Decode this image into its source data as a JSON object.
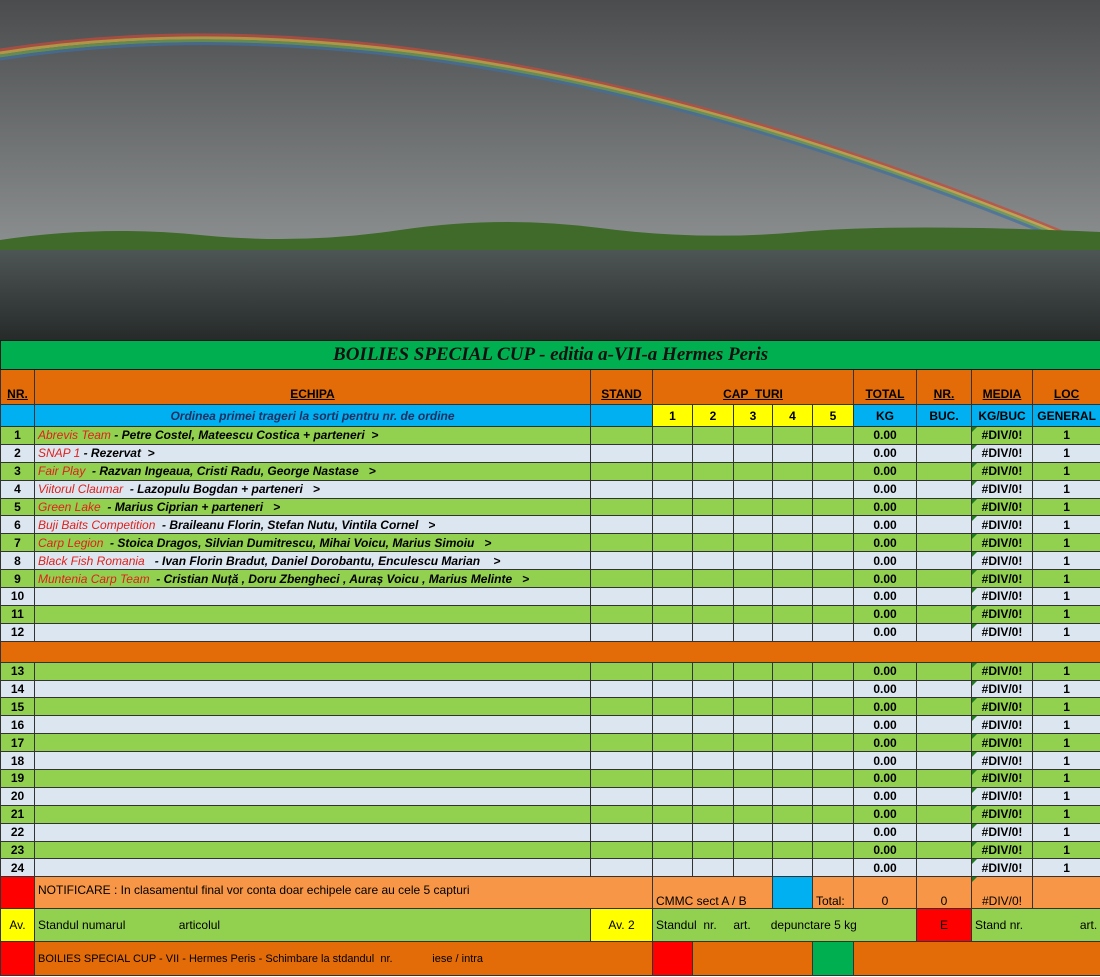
{
  "title": "BOILIES SPECIAL CUP - editia a-VII-a Hermes Peris",
  "headers": {
    "nr": "NR.",
    "echipa": "ECHIPA",
    "stand": "STAND",
    "cap_turi": "CAP  TURI",
    "total": "TOTAL",
    "nr_buc": "NR.",
    "media": "MEDIA",
    "loc": "LOC"
  },
  "subheaders": {
    "echipa": "Ordinea primei trageri la sorti pentru nr. de ordine",
    "rounds": [
      "1",
      "2",
      "3",
      "4",
      "5"
    ],
    "total": "KG",
    "nr_buc": "BUC.",
    "media": "KG/BUC",
    "loc": "GENERAL"
  },
  "rows_group1": [
    {
      "nr": "1",
      "team": "Abrevis Team",
      "members": " - Petre Costel, Mateescu Costica + parteneri  >",
      "total": "0.00",
      "media": "#DIV/0!",
      "loc": "1"
    },
    {
      "nr": "2",
      "team": "SNAP 1",
      "members": " - Rezervat  >",
      "total": "0.00",
      "media": "#DIV/0!",
      "loc": "1"
    },
    {
      "nr": "3",
      "team": "Fair Play",
      "members": "  - Razvan Ingeaua, Cristi Radu, George Nastase   >",
      "total": "0.00",
      "media": "#DIV/0!",
      "loc": "1"
    },
    {
      "nr": "4",
      "team": "Viitorul Claumar",
      "members": "  - Lazopulu Bogdan + parteneri   >",
      "total": "0.00",
      "media": "#DIV/0!",
      "loc": "1"
    },
    {
      "nr": "5",
      "team": "Green Lake",
      "members": "  - Marius Ciprian + parteneri   >",
      "total": "0.00",
      "media": "#DIV/0!",
      "loc": "1"
    },
    {
      "nr": "6",
      "team": "Buji Baits Competition",
      "members": "  - Braileanu Florin, Stefan Nutu, Vintila Cornel   >",
      "total": "0.00",
      "media": "#DIV/0!",
      "loc": "1"
    },
    {
      "nr": "7",
      "team": "Carp Legion",
      "members": "  - Stoica Dragos, Silvian Dumitrescu, Mihai Voicu, Marius Simoiu   >",
      "total": "0.00",
      "media": "#DIV/0!",
      "loc": "1"
    },
    {
      "nr": "8",
      "team": "Black Fish Romania",
      "members": "   - Ivan Florin Bradut, Daniel Dorobantu, Enculescu Marian    >",
      "total": "0.00",
      "media": "#DIV/0!",
      "loc": "1"
    },
    {
      "nr": "9",
      "team": "Muntenia Carp Team",
      "members": "  - Cristian Nuță , Doru Zbengheci , Auraș Voicu , Marius Melinte   >",
      "total": "0.00",
      "media": "#DIV/0!",
      "loc": "1"
    },
    {
      "nr": "10",
      "team": "",
      "members": "",
      "total": "0.00",
      "media": "#DIV/0!",
      "loc": "1"
    },
    {
      "nr": "11",
      "team": "",
      "members": "",
      "total": "0.00",
      "media": "#DIV/0!",
      "loc": "1"
    },
    {
      "nr": "12",
      "team": "",
      "members": "",
      "total": "0.00",
      "media": "#DIV/0!",
      "loc": "1"
    }
  ],
  "rows_group2": [
    {
      "nr": "13",
      "total": "0.00",
      "media": "#DIV/0!",
      "loc": "1"
    },
    {
      "nr": "14",
      "total": "0.00",
      "media": "#DIV/0!",
      "loc": "1"
    },
    {
      "nr": "15",
      "total": "0.00",
      "media": "#DIV/0!",
      "loc": "1"
    },
    {
      "nr": "16",
      "total": "0.00",
      "media": "#DIV/0!",
      "loc": "1"
    },
    {
      "nr": "17",
      "total": "0.00",
      "media": "#DIV/0!",
      "loc": "1"
    },
    {
      "nr": "18",
      "total": "0.00",
      "media": "#DIV/0!",
      "loc": "1"
    },
    {
      "nr": "19",
      "total": "0.00",
      "media": "#DIV/0!",
      "loc": "1"
    },
    {
      "nr": "20",
      "total": "0.00",
      "media": "#DIV/0!",
      "loc": "1"
    },
    {
      "nr": "21",
      "total": "0.00",
      "media": "#DIV/0!",
      "loc": "1"
    },
    {
      "nr": "22",
      "total": "0.00",
      "media": "#DIV/0!",
      "loc": "1"
    },
    {
      "nr": "23",
      "total": "0.00",
      "media": "#DIV/0!",
      "loc": "1"
    },
    {
      "nr": "24",
      "total": "0.00",
      "media": "#DIV/0!",
      "loc": "1"
    }
  ],
  "notif": {
    "text": "NOTIFICARE :    In clasamentul final vor conta doar echipele care au cele 5 capturi",
    "cmmc": "CMMC sect  A / B",
    "total_label": "Total:",
    "total_kg": "0",
    "total_buc": "0",
    "media": "#DIV/0!"
  },
  "av": {
    "label1": "Av.",
    "text1": "Standul numarul                articolul",
    "label2": "Av. 2",
    "text2": "Standul  nr.     art.      depunctare 5 kg",
    "label3": "E",
    "text3a": "Stand nr.",
    "text3b": "art."
  },
  "footer": {
    "text": "BOILIES SPECIAL CUP - VII - Hermes Peris - Schimbare la stdandul  nr.             iese / intra"
  },
  "colors": {
    "orange": "#e36c09",
    "green": "#92d050",
    "light": "#dce6f1",
    "blue": "#00b0f0",
    "yellow": "#ffff00",
    "title_green": "#00b050",
    "red": "#ff0000"
  }
}
